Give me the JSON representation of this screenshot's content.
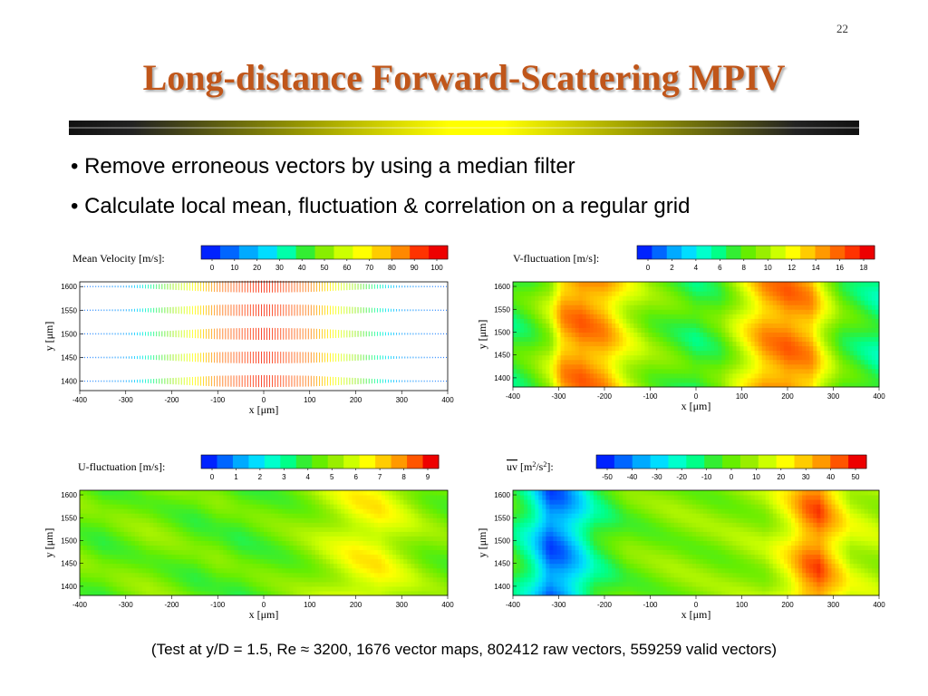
{
  "slide": {
    "page_number": "22",
    "title": "Long-distance Forward-Scattering MPIV",
    "bullets": [
      "• Remove erroneous vectors by using a median filter",
      "• Calculate local mean, fluctuation & correlation on a regular grid"
    ],
    "footer": "(Test at y/D = 1.5, Re ≈ 3200, 1676 vector maps, 802412 raw vectors, 559259 valid vectors)"
  },
  "chart_data": [
    {
      "type": "heatmap",
      "title": "Mean Velocity [m/s]:",
      "xlabel": "x [μm]",
      "ylabel": "y [μm]",
      "xticks": [
        "-400",
        "-300",
        "-200",
        "-100",
        "0",
        "100",
        "200",
        "300",
        "400"
      ],
      "yticks": [
        "1600",
        "1550",
        "1500",
        "1450",
        "1400"
      ],
      "xlim": [
        -400,
        400
      ],
      "ylim": [
        1380,
        1610
      ],
      "colorbar": {
        "ticks": [
          "0",
          "10",
          "20",
          "30",
          "40",
          "50",
          "60",
          "70",
          "80",
          "90",
          "100"
        ],
        "colors": [
          "#0022ff",
          "#0066ff",
          "#00aaff",
          "#00ddff",
          "#00ffaa",
          "#33ee33",
          "#88ee00",
          "#ccff00",
          "#ffff00",
          "#ffcc00",
          "#ff8800",
          "#ff3300",
          "#ee0000"
        ]
      },
      "style": "vector-field",
      "vector_rows_y": [
        1600,
        1550,
        1500,
        1450,
        1400
      ],
      "profile_x": [
        -400,
        -300,
        -200,
        -100,
        0,
        100,
        200,
        300,
        400
      ],
      "profile_speed": [
        8,
        15,
        50,
        85,
        95,
        85,
        50,
        15,
        8
      ]
    },
    {
      "type": "heatmap",
      "title": "V-fluctuation [m/s]:",
      "xlabel": "x [μm]",
      "ylabel": "y [μm]",
      "xticks": [
        "-400",
        "-300",
        "-200",
        "-100",
        "0",
        "100",
        "200",
        "300",
        "400"
      ],
      "yticks": [
        "1600",
        "1550",
        "1500",
        "1450",
        "1400"
      ],
      "xlim": [
        -400,
        400
      ],
      "ylim": [
        1380,
        1610
      ],
      "colorbar": {
        "ticks": [
          "0",
          "2",
          "4",
          "6",
          "8",
          "10",
          "12",
          "14",
          "16",
          "18"
        ],
        "colors": [
          "#0022ff",
          "#0066ff",
          "#00aaff",
          "#00ddff",
          "#00ffcc",
          "#00ff88",
          "#33ee33",
          "#66ee00",
          "#99ee00",
          "#ccff00",
          "#ffff00",
          "#ffcc00",
          "#ff9900",
          "#ff6600",
          "#ff3300",
          "#ee0000"
        ]
      },
      "bands_x": [
        -400,
        -360,
        -320,
        -290,
        -250,
        -200,
        -150,
        -100,
        -50,
        0,
        50,
        100,
        150,
        200,
        250,
        280,
        320,
        360,
        400
      ],
      "bands_value": [
        7,
        8,
        10,
        14,
        15,
        14,
        11,
        9,
        8,
        7,
        8,
        11,
        14,
        15,
        14,
        11,
        8,
        7,
        6
      ]
    },
    {
      "type": "heatmap",
      "title": "U-fluctuation [m/s]:",
      "xlabel": "x [μm]",
      "ylabel": "y [μm]",
      "xticks": [
        "-400",
        "-300",
        "-200",
        "-100",
        "0",
        "100",
        "200",
        "300",
        "400"
      ],
      "yticks": [
        "1600",
        "1550",
        "1500",
        "1450",
        "1400"
      ],
      "xlim": [
        -400,
        400
      ],
      "ylim": [
        1380,
        1610
      ],
      "colorbar": {
        "ticks": [
          "0",
          "1",
          "2",
          "3",
          "4",
          "5",
          "6",
          "7",
          "8",
          "9"
        ],
        "colors": [
          "#0022ff",
          "#0066ff",
          "#00aaff",
          "#00ddff",
          "#00ffcc",
          "#00ff88",
          "#33ee33",
          "#66ee00",
          "#99ee00",
          "#ccff00",
          "#ffff00",
          "#ffcc00",
          "#ff9900",
          "#ff5500",
          "#ee0000"
        ]
      },
      "bands_x": [
        -400,
        -350,
        -300,
        -250,
        -200,
        -150,
        -100,
        -50,
        0,
        50,
        100,
        150,
        200,
        250,
        300,
        350,
        400
      ],
      "bands_value": [
        4.6,
        4.3,
        4.6,
        4.8,
        4.6,
        4.3,
        4.5,
        4.2,
        4.4,
        4.6,
        5.0,
        5.6,
        6.2,
        6.3,
        5.6,
        4.9,
        4.6
      ]
    },
    {
      "type": "heatmap",
      "title_parts": [
        "uv",
        " [m",
        "2",
        "/s",
        "2",
        "]:"
      ],
      "xlabel": "x [μm]",
      "ylabel": "y [μm]",
      "xticks": [
        "-400",
        "-300",
        "-200",
        "-100",
        "0",
        "100",
        "200",
        "300",
        "400"
      ],
      "yticks": [
        "1600",
        "1550",
        "1500",
        "1450",
        "1400"
      ],
      "xlim": [
        -400,
        400
      ],
      "ylim": [
        1380,
        1610
      ],
      "colorbar": {
        "ticks": [
          "-50",
          "-40",
          "-30",
          "-20",
          "-10",
          "0",
          "10",
          "20",
          "30",
          "40",
          "50"
        ],
        "colors": [
          "#0022ff",
          "#0066ff",
          "#00aaff",
          "#00ddff",
          "#00ffcc",
          "#00ff88",
          "#33ee33",
          "#66ee00",
          "#99ee00",
          "#ccff00",
          "#ffff00",
          "#ffcc00",
          "#ff9900",
          "#ff5500",
          "#ee0000"
        ]
      },
      "bands_x": [
        -400,
        -360,
        -320,
        -290,
        -260,
        -220,
        -150,
        -100,
        -50,
        0,
        50,
        100,
        150,
        200,
        240,
        270,
        300,
        340,
        400
      ],
      "bands_value": [
        -8,
        -20,
        -42,
        -38,
        -28,
        -12,
        0,
        2,
        4,
        4,
        4,
        6,
        8,
        20,
        36,
        40,
        28,
        14,
        10
      ]
    }
  ]
}
